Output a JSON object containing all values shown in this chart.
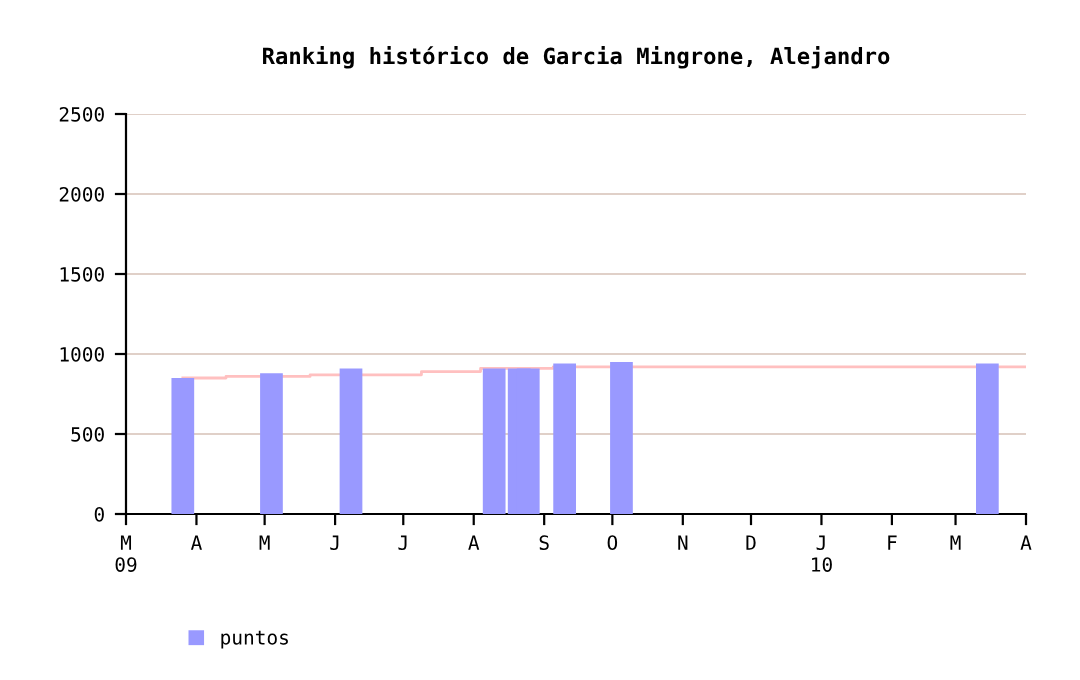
{
  "chart_data": {
    "type": "bar",
    "title": "Ranking histórico de Garcia Mingrone, Alejandro",
    "series": [
      {
        "name": "puntos",
        "color": "#9999ff",
        "x": [
          "2009-03-26",
          "2009-05-04",
          "2009-06-08",
          "2009-08-10",
          "2009-08-21",
          "2009-08-25",
          "2009-09-10",
          "2009-10-05",
          "2010-03-15"
        ],
        "values": [
          850,
          880,
          910,
          910,
          910,
          910,
          940,
          950,
          940
        ]
      },
      {
        "type": "step",
        "color": "#ffc0c0",
        "x": [
          "2009-03-26",
          "2009-04-14",
          "2009-05-21",
          "2009-07-09",
          "2009-08-04",
          "2009-09-05",
          "2010-04-01"
        ],
        "values": [
          850,
          860,
          870,
          890,
          910,
          920,
          920
        ]
      }
    ],
    "xlim": [
      "2009-03-01",
      "2010-04-01"
    ],
    "xticks": [
      {
        "value": "2009-03-01",
        "label": "M\n09"
      },
      {
        "value": "2009-04-01",
        "label": "A"
      },
      {
        "value": "2009-05-01",
        "label": "M"
      },
      {
        "value": "2009-06-01",
        "label": "J"
      },
      {
        "value": "2009-07-01",
        "label": "J"
      },
      {
        "value": "2009-08-01",
        "label": "A"
      },
      {
        "value": "2009-09-01",
        "label": "S"
      },
      {
        "value": "2009-10-01",
        "label": "O"
      },
      {
        "value": "2009-11-01",
        "label": "N"
      },
      {
        "value": "2009-12-01",
        "label": "D"
      },
      {
        "value": "2010-01-01",
        "label": "J\n10"
      },
      {
        "value": "2010-02-01",
        "label": "F"
      },
      {
        "value": "2010-03-01",
        "label": "M"
      },
      {
        "value": "2010-04-01",
        "label": "A"
      }
    ],
    "ylim": [
      0,
      2500
    ],
    "yticks": [
      0,
      500,
      1000,
      1500,
      2000,
      2500
    ],
    "grid": "y",
    "legend": "bottom left"
  }
}
